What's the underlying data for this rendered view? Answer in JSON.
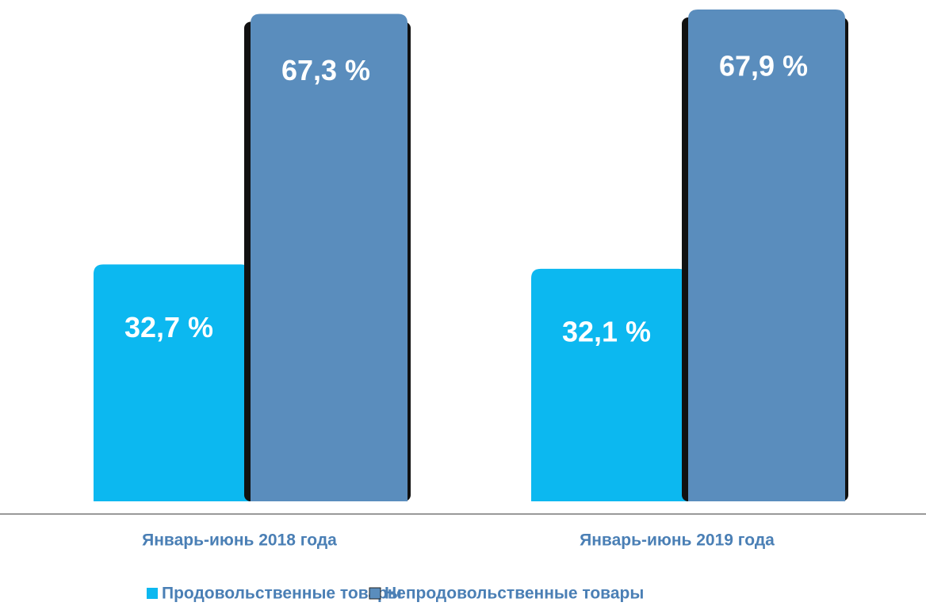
{
  "chart_data": {
    "type": "bar",
    "categories": [
      "Январь-июнь 2018 года",
      "Январь-июнь 2019 года"
    ],
    "series": [
      {
        "name": "Продовольственные товары",
        "color": "#0cb8f0",
        "values": [
          32.7,
          32.1
        ],
        "value_labels": [
          "32,7 %",
          "32,1 %"
        ]
      },
      {
        "name": "Непродовольственные товары",
        "color": "#5a8dbd",
        "values": [
          67.3,
          67.9
        ],
        "value_labels": [
          "67,3 %",
          "67,9 %"
        ]
      }
    ]
  }
}
